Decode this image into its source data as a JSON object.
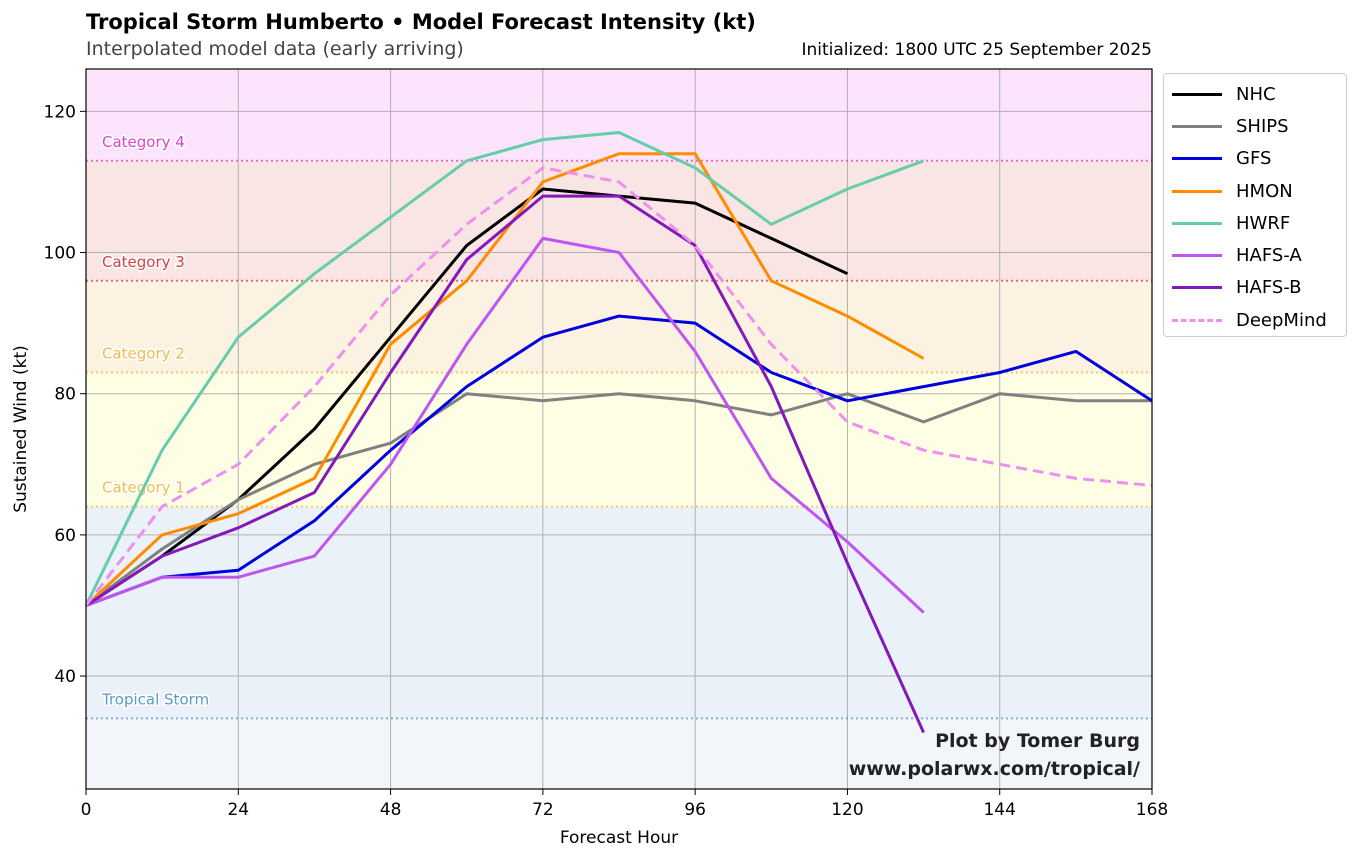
{
  "header": {
    "title": "Tropical Storm Humberto • Model Forecast Intensity (kt)",
    "subtitle": "Interpolated model data (early arriving)",
    "initialized": "Initialized: 1800 UTC 25 September 2025"
  },
  "credit": {
    "line1": "Plot by Tomer Burg",
    "line2": "www.polarwx.com/tropical/"
  },
  "chart_data": {
    "type": "line",
    "xlabel": "Forecast Hour",
    "ylabel": "Sustained Wind (kt)",
    "xlim": [
      0,
      168
    ],
    "ylim": [
      24,
      126
    ],
    "xticks": [
      0,
      24,
      48,
      72,
      96,
      120,
      144,
      168
    ],
    "yticks": [
      40,
      60,
      80,
      100,
      120
    ],
    "grid": true,
    "legend_position": "outside-right",
    "categories": [
      {
        "name": "Tropical Storm",
        "threshold": 34,
        "color": "#5a9bc4",
        "band": "#eaf1f8"
      },
      {
        "name": "Category 1",
        "threshold": 64,
        "color": "#f2bd4a",
        "band": "#fefee4"
      },
      {
        "name": "Category 2",
        "threshold": 83,
        "color": "#f4b84a",
        "band": "#fcf2e2"
      },
      {
        "name": "Category 3",
        "threshold": 96,
        "color": "#d94040",
        "band": "#fae5e5"
      },
      {
        "name": "Category 4",
        "threshold": 113,
        "color": "#e040d0",
        "band": "#fde4fd"
      }
    ],
    "below_band": "#f2f6fb",
    "series": [
      {
        "name": "NHC",
        "color": "#000000",
        "dash": false,
        "x": [
          0,
          12,
          24,
          36,
          48,
          60,
          72,
          84,
          96,
          108,
          120
        ],
        "y": [
          50,
          57,
          65,
          75,
          88,
          101,
          109,
          108,
          107,
          102,
          97
        ]
      },
      {
        "name": "SHIPS",
        "color": "#808080",
        "dash": false,
        "x": [
          0,
          12,
          24,
          36,
          48,
          60,
          72,
          84,
          96,
          108,
          120,
          132,
          144,
          156,
          168
        ],
        "y": [
          50,
          58,
          65,
          70,
          73,
          80,
          79,
          80,
          79,
          77,
          80,
          76,
          80,
          79,
          79
        ]
      },
      {
        "name": "GFS",
        "color": "#0000e0",
        "dash": false,
        "x": [
          0,
          12,
          24,
          36,
          48,
          60,
          72,
          84,
          96,
          108,
          120,
          132,
          144,
          156,
          168
        ],
        "y": [
          50,
          54,
          55,
          62,
          72,
          81,
          88,
          91,
          90,
          83,
          79,
          81,
          83,
          86,
          79
        ]
      },
      {
        "name": "HMON",
        "color": "#ff8c00",
        "dash": false,
        "x": [
          0,
          12,
          24,
          36,
          48,
          60,
          72,
          84,
          96,
          108,
          120,
          132
        ],
        "y": [
          50,
          60,
          63,
          68,
          87,
          96,
          110,
          114,
          114,
          96,
          91,
          85
        ]
      },
      {
        "name": "HWRF",
        "color": "#66cdaa",
        "dash": false,
        "x": [
          0,
          12,
          24,
          36,
          48,
          60,
          72,
          84,
          96,
          108,
          120,
          132
        ],
        "y": [
          50,
          72,
          88,
          97,
          105,
          113,
          116,
          117,
          112,
          104,
          109,
          113
        ]
      },
      {
        "name": "HAFS-A",
        "color": "#c056f0",
        "dash": false,
        "x": [
          0,
          12,
          24,
          36,
          48,
          60,
          72,
          84,
          96,
          108,
          120,
          132
        ],
        "y": [
          50,
          54,
          54,
          57,
          70,
          87,
          102,
          100,
          86,
          68,
          59,
          49
        ]
      },
      {
        "name": "HAFS-B",
        "color": "#8418b8",
        "dash": false,
        "x": [
          0,
          12,
          24,
          36,
          48,
          60,
          72,
          84,
          96,
          108,
          120,
          132
        ],
        "y": [
          50,
          57,
          61,
          66,
          83,
          99,
          108,
          108,
          101,
          81,
          56,
          32
        ]
      },
      {
        "name": "DeepMind",
        "color": "#ee90ee",
        "dash": true,
        "x": [
          0,
          12,
          24,
          36,
          48,
          60,
          72,
          84,
          96,
          108,
          120,
          132,
          144,
          156,
          168
        ],
        "y": [
          50,
          64,
          70,
          81,
          94,
          104,
          112,
          110,
          101,
          87,
          76,
          72,
          70,
          68,
          67
        ]
      }
    ]
  }
}
